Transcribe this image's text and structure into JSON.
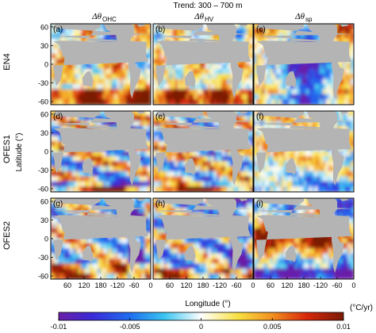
{
  "chart_data": {
    "type": "heatmap",
    "title": "Trend: 300 – 700 m",
    "column_titles": [
      {
        "symbol": "Δθ",
        "subscript": "OHC"
      },
      {
        "symbol": "Δθ",
        "subscript": "HV"
      },
      {
        "symbol": "Δθ",
        "subscript": "sp"
      }
    ],
    "row_labels": [
      "EN4",
      "OFES1",
      "OFES2"
    ],
    "panel_letters": [
      "(a)",
      "(b)",
      "(c)",
      "(d)",
      "(e)",
      "(f)",
      "(g)",
      "(h)",
      "(i)"
    ],
    "xlabel": "Longitude (°)",
    "ylabel": "Latitude (°)",
    "x_ticks": [
      "60",
      "120",
      "180",
      "-120",
      "-60",
      "0"
    ],
    "y_ticks": [
      "60",
      "30",
      "0",
      "-30",
      "-60"
    ],
    "ylim": [
      -65,
      65
    ],
    "colorbar": {
      "unit": "(°C/yr)",
      "range": [
        -0.01,
        0.01
      ],
      "ticks": [
        "-0.01",
        "-0.005",
        "0",
        "0.005",
        "0.01"
      ],
      "tick_values": [
        -0.01,
        -0.005,
        0,
        0.005,
        0.01
      ]
    },
    "colors": {
      "land": "#b4b4b4",
      "min": "#6a1fa8",
      "mid": "#ffffff",
      "max": "#7a1a05"
    }
  }
}
